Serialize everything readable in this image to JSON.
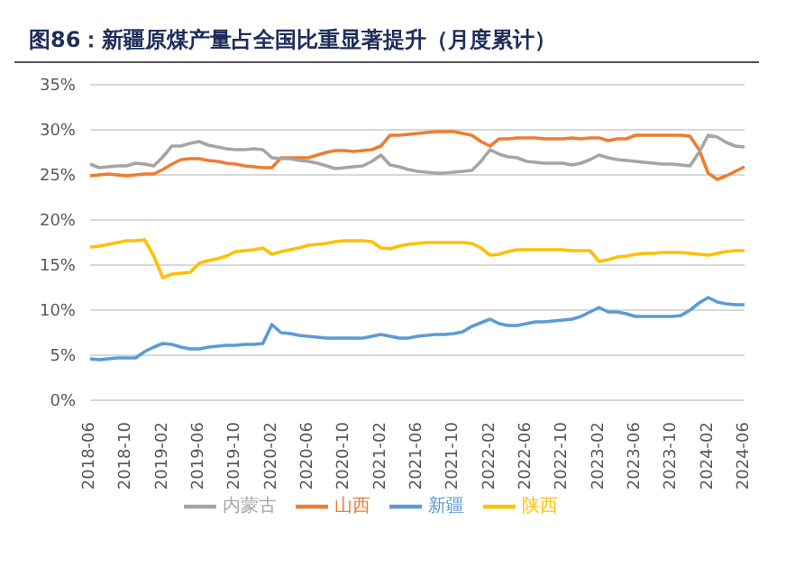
{
  "chart_data": {
    "type": "line",
    "title": "图86：新疆原煤产量占全国比重显著提升（月度累计）",
    "categories": [
      "2018-06",
      null,
      null,
      null,
      "2018-10",
      null,
      null,
      null,
      "2019-02",
      null,
      null,
      null,
      "2019-06",
      null,
      null,
      null,
      "2019-10",
      null,
      null,
      null,
      "2020-02",
      null,
      null,
      null,
      "2020-06",
      null,
      null,
      null,
      "2020-10",
      null,
      null,
      null,
      "2021-02",
      null,
      null,
      null,
      "2021-06",
      null,
      null,
      null,
      "2021-10",
      null,
      null,
      null,
      "2022-02",
      null,
      null,
      null,
      "2022-06",
      null,
      null,
      null,
      "2022-10",
      null,
      null,
      null,
      "2023-02",
      null,
      null,
      null,
      "2023-06",
      null,
      null,
      null,
      "2023-10",
      null,
      null,
      null,
      "2024-02",
      null,
      null,
      null,
      "2024-06"
    ],
    "series": [
      {
        "name": "新疆",
        "color": "#5b9bd5",
        "values": [
          4.6,
          4.5,
          4.6,
          4.7,
          4.7,
          4.7,
          5.4,
          5.9,
          6.3,
          6.2,
          5.9,
          5.7,
          5.7,
          5.9,
          6.0,
          6.1,
          6.1,
          6.2,
          6.2,
          6.3,
          8.4,
          7.5,
          7.4,
          7.2,
          7.1,
          7.0,
          6.9,
          6.9,
          6.9,
          6.9,
          6.9,
          7.1,
          7.3,
          7.1,
          6.9,
          6.9,
          7.1,
          7.2,
          7.3,
          7.3,
          7.4,
          7.6,
          8.2,
          8.6,
          9.0,
          8.5,
          8.3,
          8.3,
          8.5,
          8.7,
          8.7,
          8.8,
          8.9,
          9.0,
          9.3,
          9.8,
          10.3,
          9.8,
          9.8,
          9.6,
          9.3,
          9.3,
          9.3,
          9.3,
          9.3,
          9.4,
          10.0,
          10.8,
          11.4,
          10.9,
          10.7,
          10.6,
          10.6
        ]
      },
      {
        "name": "山西",
        "color": "#ed7d31",
        "values": [
          24.9,
          25.0,
          25.1,
          25.0,
          24.9,
          25.0,
          25.1,
          25.1,
          25.6,
          26.2,
          26.7,
          26.8,
          26.8,
          26.6,
          26.5,
          26.3,
          26.2,
          26.0,
          25.9,
          25.8,
          25.8,
          26.9,
          26.9,
          26.9,
          26.9,
          27.2,
          27.5,
          27.7,
          27.7,
          27.6,
          27.7,
          27.8,
          28.2,
          29.4,
          29.4,
          29.5,
          29.6,
          29.7,
          29.8,
          29.8,
          29.8,
          29.6,
          29.4,
          28.7,
          28.2,
          29.0,
          29.0,
          29.1,
          29.1,
          29.1,
          29.0,
          29.0,
          29.0,
          29.1,
          29.0,
          29.1,
          29.1,
          28.8,
          29.0,
          29.0,
          29.4,
          29.4,
          29.4,
          29.4,
          29.4,
          29.4,
          29.3,
          27.8,
          25.2,
          24.5,
          24.9,
          25.4,
          25.9
        ]
      },
      {
        "name": "内蒙古",
        "color": "#a5a5a5",
        "values": [
          26.2,
          25.8,
          25.9,
          26.0,
          26.0,
          26.3,
          26.2,
          26.0,
          27.0,
          28.2,
          28.2,
          28.5,
          28.7,
          28.3,
          28.1,
          27.9,
          27.8,
          27.8,
          27.9,
          27.8,
          26.9,
          26.8,
          26.8,
          26.6,
          26.5,
          26.3,
          26.0,
          25.7,
          25.8,
          25.9,
          26.0,
          26.5,
          27.2,
          26.1,
          25.9,
          25.6,
          25.4,
          25.3,
          25.2,
          25.2,
          25.3,
          25.4,
          25.5,
          26.5,
          27.8,
          27.3,
          27.0,
          26.9,
          26.5,
          26.4,
          26.3,
          26.3,
          26.3,
          26.1,
          26.3,
          26.7,
          27.2,
          26.9,
          26.7,
          26.6,
          26.5,
          26.4,
          26.3,
          26.2,
          26.2,
          26.1,
          26.0,
          27.5,
          29.4,
          29.2,
          28.6,
          28.2,
          28.1
        ]
      },
      {
        "name": "陕西",
        "color": "#ffc000",
        "values": [
          17.0,
          17.1,
          17.3,
          17.5,
          17.7,
          17.7,
          17.8,
          16.0,
          13.6,
          14.0,
          14.1,
          14.2,
          15.2,
          15.5,
          15.7,
          16.0,
          16.5,
          16.6,
          16.7,
          16.9,
          16.2,
          16.5,
          16.7,
          16.9,
          17.2,
          17.3,
          17.4,
          17.6,
          17.7,
          17.7,
          17.7,
          17.6,
          16.9,
          16.8,
          17.1,
          17.3,
          17.4,
          17.5,
          17.5,
          17.5,
          17.5,
          17.5,
          17.4,
          16.9,
          16.1,
          16.2,
          16.5,
          16.7,
          16.7,
          16.7,
          16.7,
          16.7,
          16.7,
          16.6,
          16.6,
          16.6,
          15.4,
          15.6,
          15.9,
          16.0,
          16.2,
          16.3,
          16.3,
          16.4,
          16.4,
          16.4,
          16.3,
          16.2,
          16.1,
          16.3,
          16.5,
          16.6,
          16.6
        ]
      }
    ],
    "ylim": [
      0,
      35
    ],
    "yticks": [
      {
        "value": 0,
        "label": "0%"
      },
      {
        "value": 5,
        "label": "5%"
      },
      {
        "value": 10,
        "label": "10%"
      },
      {
        "value": 15,
        "label": "15%"
      },
      {
        "value": 20,
        "label": "20%"
      },
      {
        "value": 25,
        "label": "25%"
      },
      {
        "value": 30,
        "label": "30%"
      },
      {
        "value": 35,
        "label": "35%"
      }
    ],
    "grid": "y",
    "legend": "bottom",
    "marker": "none",
    "line_style": "solid"
  }
}
